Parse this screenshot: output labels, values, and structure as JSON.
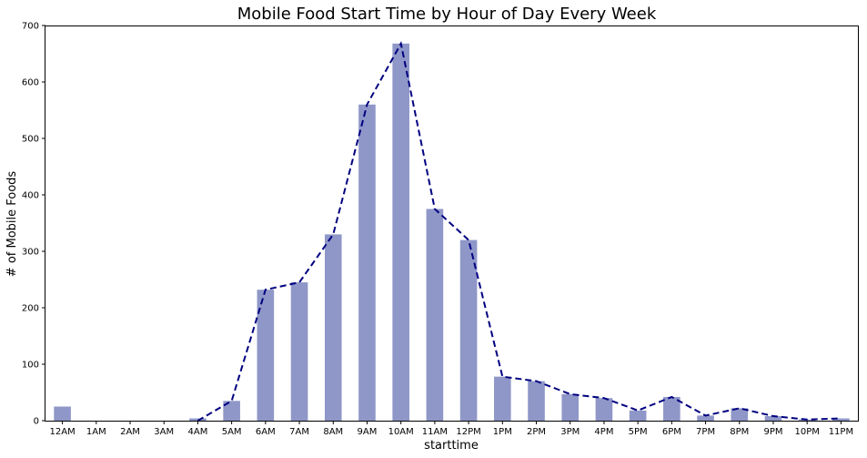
{
  "chart_data": {
    "type": "bar",
    "title": "Mobile Food Start Time by Hour of Day Every Week",
    "xlabel": "starttime",
    "ylabel": "# of Mobile Foods",
    "categories": [
      "12AM",
      "1AM",
      "2AM",
      "3AM",
      "4AM",
      "5AM",
      "6AM",
      "7AM",
      "8AM",
      "9AM",
      "10AM",
      "11AM",
      "12PM",
      "1PM",
      "2PM",
      "3PM",
      "4PM",
      "5PM",
      "6PM",
      "7PM",
      "8PM",
      "9PM",
      "10PM",
      "11PM"
    ],
    "bar_values": [
      25,
      0,
      0,
      0,
      4,
      35,
      232,
      245,
      330,
      560,
      668,
      375,
      320,
      78,
      70,
      47,
      40,
      18,
      42,
      9,
      22,
      8,
      2,
      4
    ],
    "line_values": [
      null,
      null,
      null,
      null,
      0,
      35,
      232,
      245,
      330,
      560,
      668,
      375,
      320,
      78,
      70,
      47,
      40,
      18,
      42,
      9,
      22,
      8,
      2,
      4
    ],
    "ylim": [
      0,
      700
    ],
    "yticks": [
      0,
      100,
      200,
      300,
      400,
      500,
      600,
      700
    ],
    "bar_color": "#8f97c8",
    "line_color": "#000080",
    "line_style": "dashed",
    "grid": false
  }
}
